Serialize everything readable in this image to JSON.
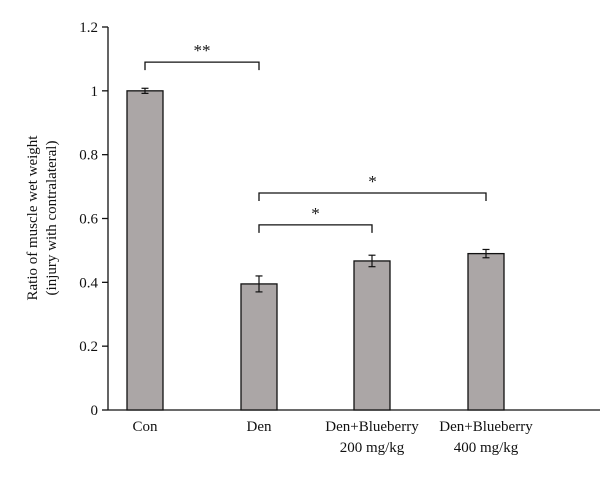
{
  "chart_data": {
    "type": "bar",
    "title": "",
    "ylabel": "Ratio of muscle wet weight",
    "ylabel_line2": "(injury with contralateral)",
    "xlabel": "",
    "ylim": [
      0,
      1.2
    ],
    "yticks": [
      0,
      0.2,
      0.4,
      0.6,
      0.8,
      1,
      1.2
    ],
    "ytick_labels": [
      "0",
      "0.2",
      "0.4",
      "0.6",
      "0.8",
      "1",
      "1.2"
    ],
    "categories": [
      [
        "Con"
      ],
      [
        "Den"
      ],
      [
        "Den+Blueberry",
        "200 mg/kg"
      ],
      [
        "Den+Blueberry",
        "400 mg/kg"
      ]
    ],
    "values": [
      1.0,
      0.395,
      0.467,
      0.49
    ],
    "errors": [
      0.008,
      0.025,
      0.018,
      0.013
    ],
    "bar_color": "#aba6a6",
    "significance": [
      {
        "from": 0,
        "to": 1,
        "label": "**",
        "y": 1.09
      },
      {
        "from": 1,
        "to": 2,
        "label": "*",
        "y": 0.58
      },
      {
        "from": 1,
        "to": 3,
        "label": "*",
        "y": 0.68
      }
    ],
    "grid": false,
    "legend": "none"
  }
}
